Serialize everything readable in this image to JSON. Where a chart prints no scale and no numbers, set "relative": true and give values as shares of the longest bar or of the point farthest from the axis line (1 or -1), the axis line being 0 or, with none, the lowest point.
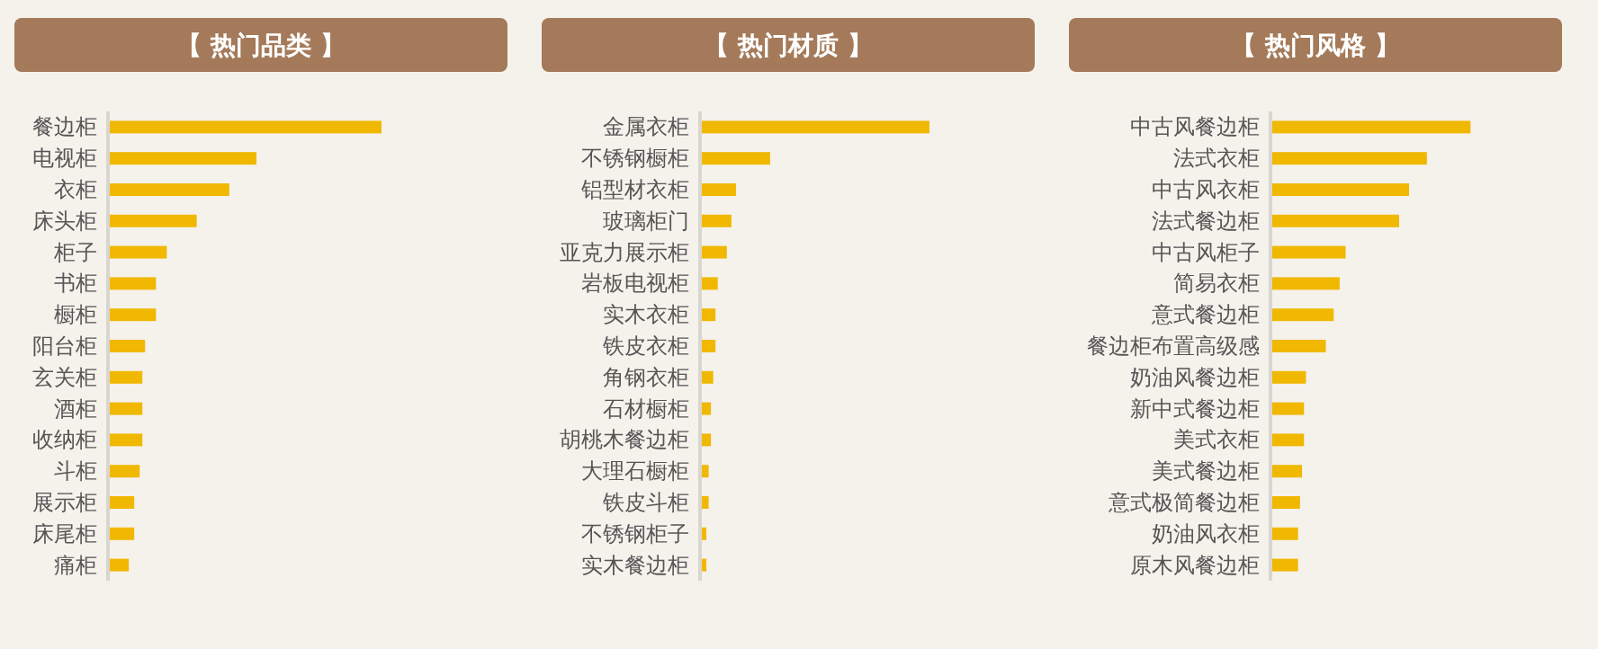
{
  "chart_data": [
    {
      "type": "bar",
      "orientation": "horizontal",
      "relative": true,
      "title": "【 热门品类 】",
      "color": "#f0b800",
      "categories": [
        "餐边柜",
        "电视柜",
        "衣柜",
        "床头柜",
        "柜子",
        "书柜",
        "橱柜",
        "阳台柜",
        "玄关柜",
        "酒柜",
        "收纳柜",
        "斗柜",
        "展示柜",
        "床尾柜",
        "痛柜"
      ],
      "values": [
        1,
        0.54,
        0.44,
        0.32,
        0.21,
        0.17,
        0.17,
        0.13,
        0.12,
        0.12,
        0.12,
        0.11,
        0.09,
        0.09,
        0.07
      ]
    },
    {
      "type": "bar",
      "orientation": "horizontal",
      "relative": true,
      "title": "【 热门材质 】",
      "color": "#f0b800",
      "categories": [
        "金属衣柜",
        "不锈钢橱柜",
        "铝型材衣柜",
        "玻璃柜门",
        "亚克力展示柜",
        "岩板电视柜",
        "实木衣柜",
        "铁皮衣柜",
        "角钢衣柜",
        "石材橱柜",
        "胡桃木餐边柜",
        "大理石橱柜",
        "铁皮斗柜",
        "不锈钢柜子",
        "实木餐边柜"
      ],
      "values": [
        1,
        0.3,
        0.15,
        0.13,
        0.11,
        0.07,
        0.06,
        0.06,
        0.05,
        0.04,
        0.04,
        0.03,
        0.03,
        0.02,
        0.02
      ]
    },
    {
      "type": "bar",
      "orientation": "horizontal",
      "relative": true,
      "title": "【 热门风格 】",
      "color": "#f0b800",
      "categories": [
        "中古风餐边柜",
        "法式衣柜",
        "中古风衣柜",
        "法式餐边柜",
        "中古风柜子",
        "简易衣柜",
        "意式餐边柜",
        "餐边柜布置高级感",
        "奶油风餐边柜",
        "新中式餐边柜",
        "美式衣柜",
        "美式餐边柜",
        "意式极简餐边柜",
        "奶油风衣柜",
        "原木风餐边柜"
      ],
      "values": [
        1,
        0.78,
        0.69,
        0.64,
        0.37,
        0.34,
        0.31,
        0.27,
        0.17,
        0.16,
        0.16,
        0.15,
        0.14,
        0.13,
        0.13
      ]
    }
  ]
}
